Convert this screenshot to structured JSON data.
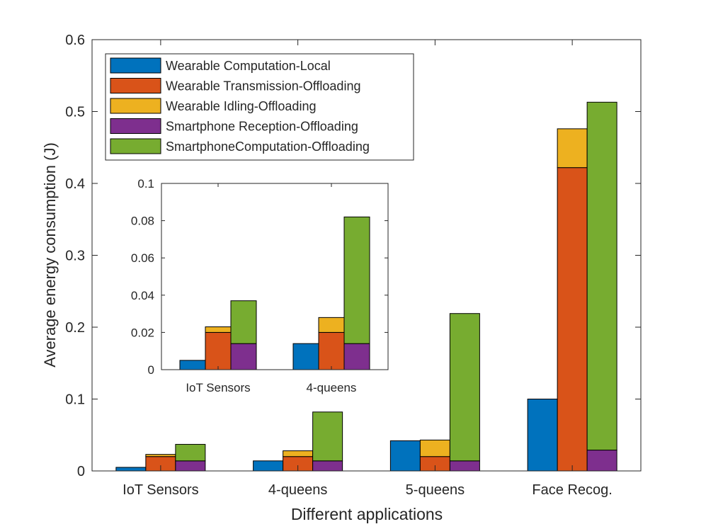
{
  "chart_data": [
    {
      "type": "bar",
      "stacked": true,
      "grouped": true,
      "title": "",
      "xlabel": "Different applications",
      "ylabel": "Average energy consumption (J)",
      "ylim": [
        0,
        0.6
      ],
      "yticks": [
        "0",
        "0.1",
        "0.2",
        "0.3",
        "0.4",
        "0.5",
        "0.6"
      ],
      "grid": false,
      "legend_placement": "top-left",
      "categories": [
        "IoT Sensors",
        "4-queens",
        "5-queens",
        "Face Recog."
      ],
      "series": [
        {
          "name": "Wearable Computation-Local",
          "color": "#0072BD"
        },
        {
          "name": "Wearable Transmission-Offloading",
          "color": "#D95319"
        },
        {
          "name": "Wearable Idling-Offloading",
          "color": "#EDB120"
        },
        {
          "name": "Smartphone Reception-Offloading",
          "color": "#7E2F8E"
        },
        {
          "name": "SmartphoneComputation-Offloading",
          "color": "#77AC30"
        }
      ],
      "bars": [
        [
          [
            {
              "series": 0,
              "value": 0.005
            }
          ],
          [
            {
              "series": 1,
              "value": 0.02
            },
            {
              "series": 2,
              "value": 0.003
            }
          ],
          [
            {
              "series": 3,
              "value": 0.014
            },
            {
              "series": 4,
              "value": 0.023
            }
          ]
        ],
        [
          [
            {
              "series": 0,
              "value": 0.014
            }
          ],
          [
            {
              "series": 1,
              "value": 0.02
            },
            {
              "series": 2,
              "value": 0.008
            }
          ],
          [
            {
              "series": 3,
              "value": 0.014
            },
            {
              "series": 4,
              "value": 0.068
            }
          ]
        ],
        [
          [
            {
              "series": 0,
              "value": 0.042
            }
          ],
          [
            {
              "series": 1,
              "value": 0.02
            },
            {
              "series": 2,
              "value": 0.023
            }
          ],
          [
            {
              "series": 3,
              "value": 0.014
            },
            {
              "series": 4,
              "value": 0.205
            }
          ]
        ],
        [
          [
            {
              "series": 0,
              "value": 0.1
            }
          ],
          [
            {
              "series": 1,
              "value": 0.422
            },
            {
              "series": 2,
              "value": 0.054
            }
          ],
          [
            {
              "series": 3,
              "value": 0.029
            },
            {
              "series": 4,
              "value": 0.484
            }
          ]
        ]
      ]
    },
    {
      "type": "bar",
      "stacked": true,
      "grouped": true,
      "inset": true,
      "title": "",
      "ylim": [
        0,
        0.1
      ],
      "yticks": [
        "0",
        "0.02",
        "0.04",
        "0.06",
        "0.08",
        "0.1"
      ],
      "grid": false,
      "categories": [
        "IoT Sensors",
        "4-queens"
      ],
      "bars": [
        [
          [
            {
              "series": 0,
              "value": 0.005
            }
          ],
          [
            {
              "series": 1,
              "value": 0.02
            },
            {
              "series": 2,
              "value": 0.003
            }
          ],
          [
            {
              "series": 3,
              "value": 0.014
            },
            {
              "series": 4,
              "value": 0.023
            }
          ]
        ],
        [
          [
            {
              "series": 0,
              "value": 0.014
            }
          ],
          [
            {
              "series": 1,
              "value": 0.02
            },
            {
              "series": 2,
              "value": 0.008
            }
          ],
          [
            {
              "series": 3,
              "value": 0.014
            },
            {
              "series": 4,
              "value": 0.068
            }
          ]
        ]
      ]
    }
  ]
}
